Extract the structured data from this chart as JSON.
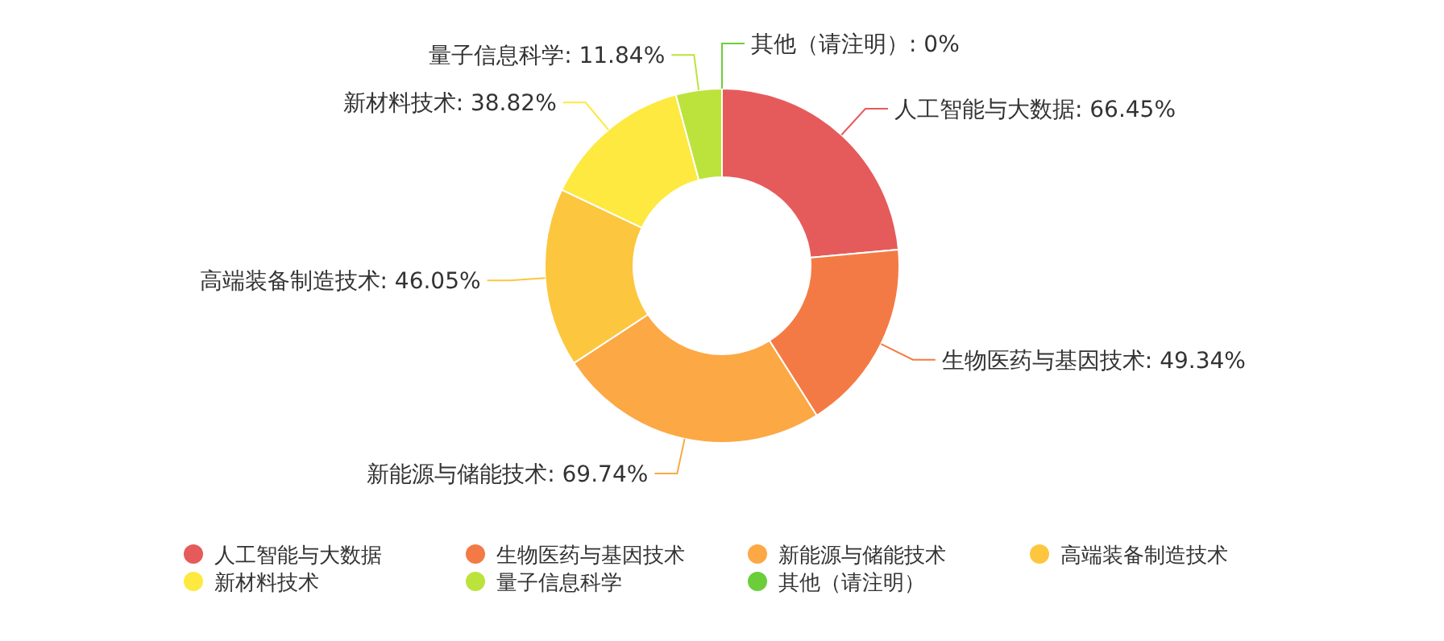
{
  "chart_data": {
    "type": "donut",
    "categories": [
      "人工智能与大数据",
      "生物医药与基因技术",
      "新能源与储能技术",
      "高端装备制造技术",
      "新材料技术",
      "量子信息科学",
      "其他（请注明）"
    ],
    "values": [
      66.45,
      49.34,
      69.74,
      46.05,
      38.82,
      11.84,
      0
    ],
    "value_labels": [
      "人工智能与大数据: 66.45%",
      "生物医药与基因技术: 49.34%",
      "新能源与储能技术: 69.74%",
      "高端装备制造技术: 46.05%",
      "新材料技术: 38.82%",
      "量子信息科学: 11.84%",
      "其他（请注明）: 0%"
    ],
    "colors": [
      "#e55b5b",
      "#f47a45",
      "#fca845",
      "#fcc63e",
      "#fde93f",
      "#bce33c",
      "#6ccd3b"
    ],
    "legend": "bottom"
  }
}
